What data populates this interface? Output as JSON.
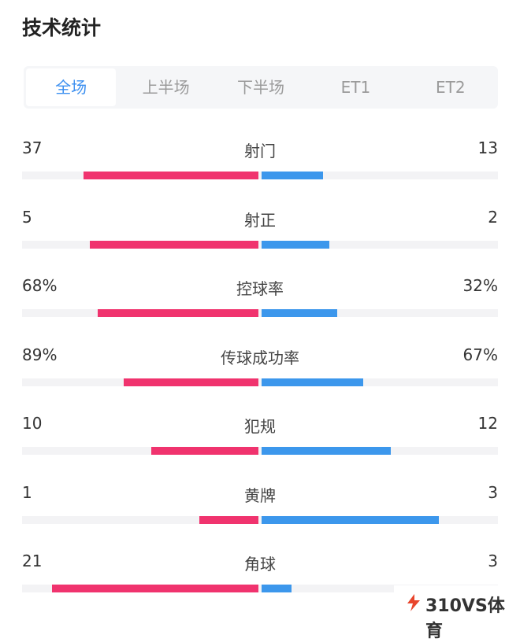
{
  "header": {
    "title": "技术统计"
  },
  "tabs": {
    "items": [
      "全场",
      "上半场",
      "下半场",
      "ET1",
      "ET2"
    ],
    "selected": 0
  },
  "stats": {
    "home_color": "#f0336e",
    "away_color": "#3c97ec",
    "rows": [
      {
        "name": "射门",
        "home": 37,
        "away": 13
      },
      {
        "name": "射正",
        "home": 5,
        "away": 2
      },
      {
        "name": "控球率",
        "home": 68,
        "away": 32,
        "home_label": "68%",
        "away_label": "32%"
      },
      {
        "name": "传球成功率",
        "home": 89,
        "away": 67,
        "home_label": "89%",
        "away_label": "67%"
      },
      {
        "name": "犯规",
        "home": 10,
        "away": 12
      },
      {
        "name": "黄牌",
        "home": 1,
        "away": 3
      },
      {
        "name": "角球",
        "home": 21,
        "away": 3
      }
    ]
  },
  "watermark": {
    "text": "310VS体育"
  }
}
